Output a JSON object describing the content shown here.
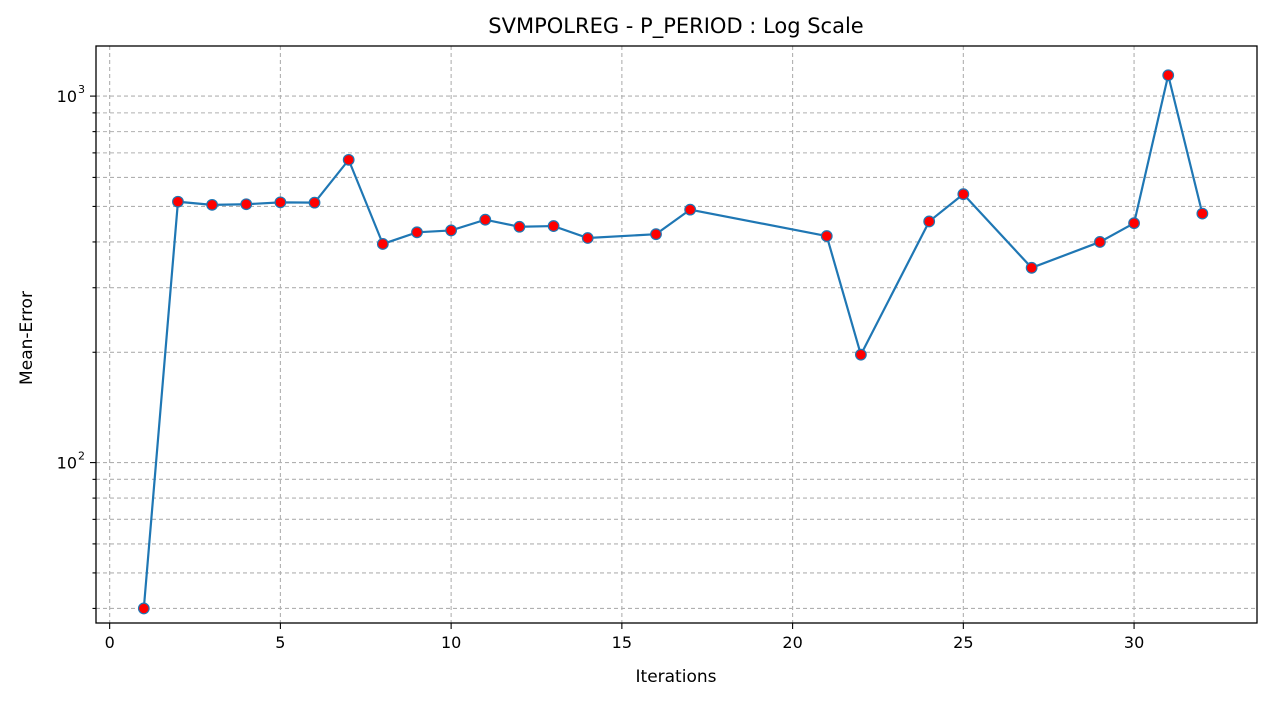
{
  "chart_data": {
    "type": "line",
    "title": "SVMPOLREG - P_PERIOD : Log Scale",
    "xlabel": "Iterations",
    "ylabel": "Mean-Error",
    "yscale": "log",
    "xlim": [
      -0.4,
      33.6
    ],
    "ylim": [
      36.5,
      1370
    ],
    "grid": true,
    "xticks": [
      0,
      5,
      10,
      15,
      20,
      25,
      30
    ],
    "yticks_major": [
      {
        "value": 100,
        "base": "10",
        "exp": "2"
      },
      {
        "value": 1000,
        "base": "10",
        "exp": "3"
      }
    ],
    "yticks_minor": [
      40,
      50,
      60,
      70,
      80,
      90,
      200,
      300,
      400,
      500,
      600,
      700,
      800,
      900
    ],
    "line_color": "#1f77b4",
    "marker_color": "#ff0000",
    "series": [
      {
        "x": [
          1,
          2,
          3,
          4,
          5,
          6,
          7,
          8,
          9,
          10,
          11,
          12,
          13,
          14,
          16,
          17,
          21,
          22,
          24,
          25,
          27,
          29,
          30,
          31,
          32
        ],
        "values": [
          40,
          515,
          505,
          507,
          513,
          512,
          670,
          395,
          425,
          430,
          460,
          440,
          442,
          410,
          420,
          490,
          415,
          197,
          455,
          540,
          340,
          400,
          450,
          1140,
          478
        ]
      }
    ]
  }
}
